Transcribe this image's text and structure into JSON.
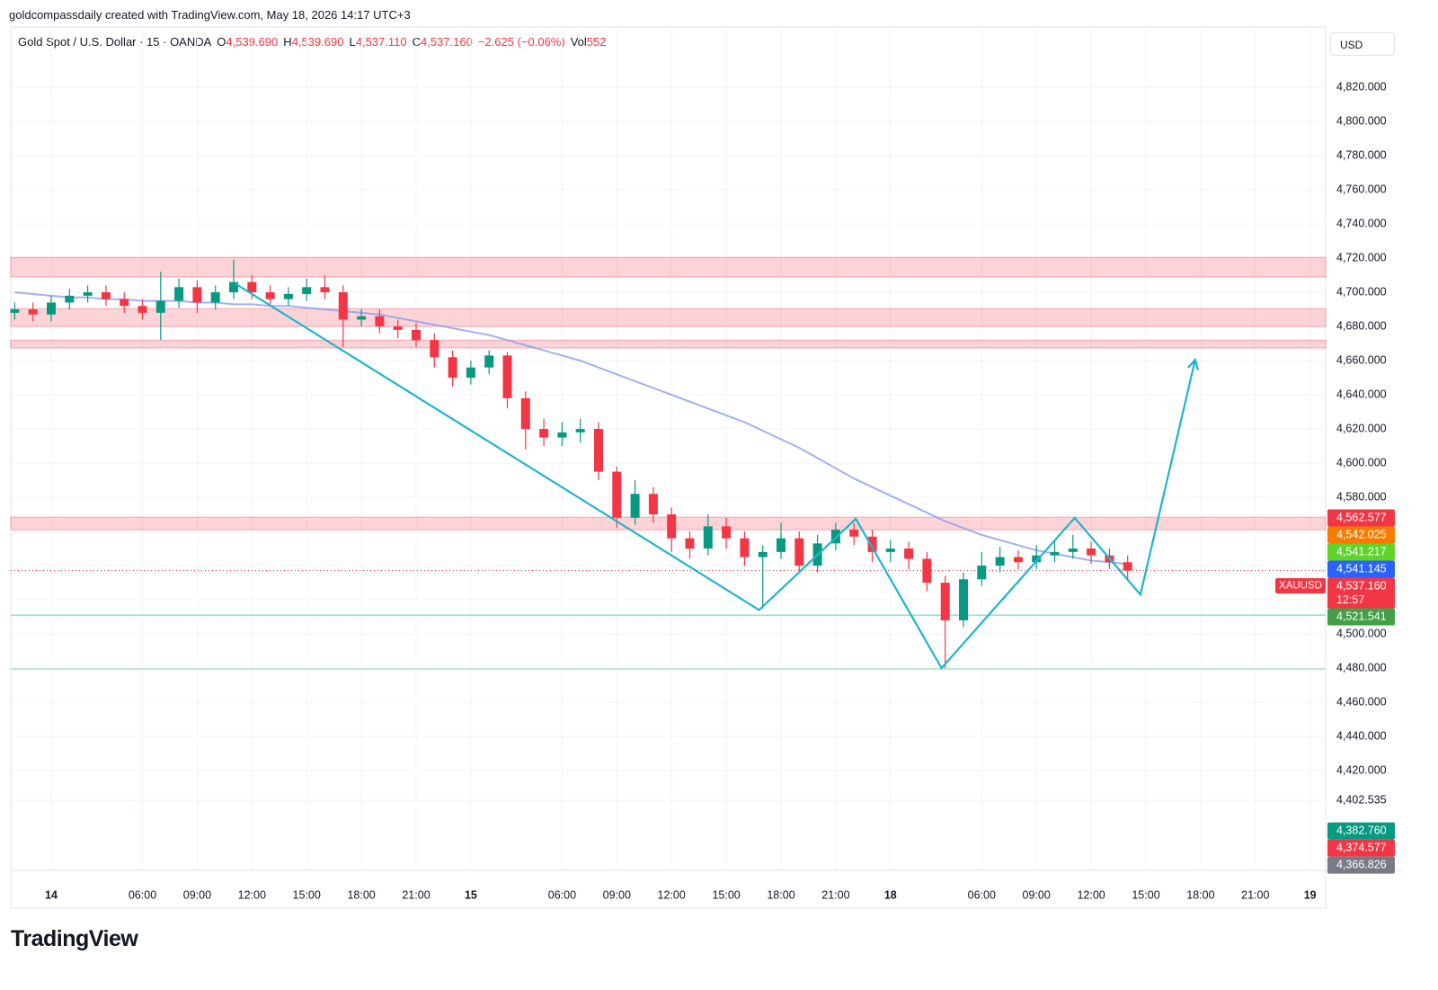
{
  "header": {
    "attribution": "goldcompassdaily created with TradingView.com, May 18, 2026 14:17 UTC+3",
    "symbol": "Gold Spot / U.S. Dollar · 15 · OANDA",
    "open_label": "O",
    "open": "4,539.690",
    "high_label": "H",
    "high": "4,539.690",
    "low_label": "L",
    "low": "4,537.110",
    "close_label": "C",
    "close": "4,537.160",
    "change": "−2.625 (−0.06%)",
    "volume_label": "Vol",
    "volume": "552",
    "currency": "USD"
  },
  "chart_data": {
    "type": "candlestick",
    "categories": [
      null,
      null,
      "14",
      null,
      null,
      null,
      null,
      "06:00",
      null,
      null,
      "09:00",
      null,
      null,
      "12:00",
      null,
      null,
      "15:00",
      null,
      null,
      "18:00",
      null,
      null,
      "21:00",
      null,
      null,
      "15",
      null,
      null,
      null,
      null,
      "06:00",
      null,
      null,
      "09:00",
      null,
      null,
      "12:00",
      null,
      null,
      "15:00",
      null,
      null,
      "18:00",
      null,
      null,
      "21:00",
      null,
      null,
      "18",
      null,
      null,
      null,
      null,
      "06:00",
      null,
      null,
      "09:00",
      null,
      null,
      "12:00",
      null,
      null,
      "15:00",
      null,
      null,
      "18:00",
      null,
      null,
      "21:00",
      null,
      null,
      "19"
    ],
    "open": [
      4688,
      4690,
      4687,
      4694,
      4698,
      4700,
      4696,
      4692,
      4688,
      4695,
      4703,
      4694,
      4700,
      4706,
      4700,
      4696,
      4699,
      4703,
      4700,
      4684,
      4686,
      4680,
      4678,
      4672,
      4662,
      4650,
      4656,
      4663,
      4638,
      4620,
      4615,
      4618,
      4620,
      4595,
      4568,
      4582,
      4570,
      4556,
      4550,
      4563,
      4556,
      4545,
      4548,
      4556,
      4540,
      4553,
      4561,
      4557,
      4548,
      4550,
      4544,
      4530,
      4508,
      4532,
      4540,
      4545,
      4542,
      4546,
      4548,
      4550,
      4546,
      4542,
      null,
      null,
      null,
      null,
      null,
      null,
      null,
      null,
      null,
      null
    ],
    "high": [
      4694,
      4694,
      4698,
      4702,
      4704,
      4704,
      4700,
      4696,
      4712,
      4708,
      4707,
      4704,
      4719,
      4710,
      4704,
      4703,
      4708,
      4710,
      4704,
      4690,
      4690,
      4684,
      4682,
      4676,
      4666,
      4660,
      4666,
      4665,
      4642,
      4626,
      4624,
      4626,
      4624,
      4598,
      4590,
      4586,
      4574,
      4560,
      4570,
      4568,
      4560,
      4552,
      4565,
      4560,
      4558,
      4565,
      4565,
      4561,
      4555,
      4554,
      4548,
      4534,
      4536,
      4548,
      4551,
      4549,
      4552,
      4555,
      4558,
      4554,
      4550,
      4546,
      null,
      null,
      null,
      null,
      null,
      null,
      null,
      null,
      null,
      null
    ],
    "low": [
      4684,
      4683,
      4683,
      4690,
      4694,
      4692,
      4688,
      4684,
      4672,
      4691,
      4688,
      4690,
      4696,
      4696,
      4692,
      4692,
      4695,
      4696,
      4668,
      4680,
      4676,
      4673,
      4668,
      4656,
      4645,
      4646,
      4652,
      4632,
      4608,
      4610,
      4610,
      4612,
      4590,
      4562,
      4564,
      4565,
      4548,
      4544,
      4546,
      4550,
      4540,
      4515,
      4544,
      4536,
      4536,
      4549,
      4552,
      4542,
      4542,
      4538,
      4525,
      4480,
      4504,
      4528,
      4536,
      4538,
      4538,
      4542,
      4544,
      4541,
      4538,
      4532,
      null,
      null,
      null,
      null,
      null,
      null,
      null,
      null,
      null,
      null
    ],
    "close": [
      4690,
      4687,
      4694,
      4698,
      4700,
      4696,
      4692,
      4688,
      4695,
      4703,
      4694,
      4700,
      4706,
      4700,
      4696,
      4699,
      4703,
      4700,
      4684,
      4686,
      4680,
      4678,
      4672,
      4662,
      4650,
      4656,
      4663,
      4638,
      4620,
      4615,
      4618,
      4620,
      4595,
      4568,
      4582,
      4570,
      4556,
      4550,
      4563,
      4556,
      4545,
      4548,
      4556,
      4540,
      4553,
      4561,
      4557,
      4548,
      4550,
      4544,
      4530,
      4508,
      4532,
      4540,
      4545,
      4542,
      4546,
      4548,
      4550,
      4546,
      4542,
      4537.16,
      null,
      null,
      null,
      null,
      null,
      null,
      null,
      null,
      null,
      null
    ],
    "up_color": "#089981",
    "down_color": "#f23645",
    "ma": {
      "color": "#8c9cf0",
      "values": [
        4700,
        4699,
        4698,
        4697,
        4697,
        4696,
        4696,
        4695,
        4695,
        4695,
        4694,
        4694,
        4693,
        4693,
        4692,
        4692,
        4691,
        4690,
        4689,
        4688,
        4687,
        4685,
        4683,
        4681,
        4679,
        4677,
        4675,
        4672,
        4669,
        4666,
        4663,
        4660,
        4656,
        4652,
        4648,
        4644,
        4640,
        4636,
        4632,
        4628,
        4624,
        4619,
        4614,
        4609,
        4603,
        4597,
        4591,
        4586,
        4581,
        4576,
        4571,
        4566,
        4562,
        4558,
        4555,
        4552,
        4549,
        4547,
        4545,
        4543,
        4542,
        4541,
        null,
        null,
        null,
        null,
        null,
        null,
        null,
        null,
        null,
        null
      ]
    },
    "zones": [
      {
        "from": 4709,
        "to": 4720.5
      },
      {
        "from": 4680,
        "to": 4690.5
      },
      {
        "from": 4667.4,
        "to": 4672
      },
      {
        "from": 4561,
        "to": 4568.4
      }
    ],
    "zone_color": "#f23645",
    "levels": [
      {
        "value": 4511,
        "color": "#7fd8c8"
      },
      {
        "value": 4479.5,
        "color": "#9fe0bf"
      }
    ],
    "last_price": {
      "value": 4537.16,
      "color": "#f23645"
    },
    "pattern": {
      "color": "#1fb5cc",
      "x": [
        12.1,
        40.8,
        46.1,
        50.8,
        58.1,
        61.7,
        64.7
      ],
      "y": [
        4705,
        4514,
        4567.4,
        4480,
        4568,
        4523,
        4660.5
      ]
    },
    "ylim": [
      4361.6,
      4855.3
    ],
    "yticks": [
      {
        "value": 4402.535,
        "label": "4,402.535"
      },
      {
        "value": 4420,
        "label": "4,420.000"
      },
      {
        "value": 4440,
        "label": "4,440.000"
      },
      {
        "value": 4460,
        "label": "4,460.000"
      },
      {
        "value": 4480,
        "label": "4,480.000"
      },
      {
        "value": 4500,
        "label": "4,500.000"
      },
      {
        "value": 4520,
        "label": "4,520.000"
      },
      {
        "value": 4540,
        "label": "4,540.000"
      },
      {
        "value": 4560,
        "label": "4,560.000"
      },
      {
        "value": 4580,
        "label": "4,580.000"
      },
      {
        "value": 4600,
        "label": "4,600.000"
      },
      {
        "value": 4620,
        "label": "4,620.000"
      },
      {
        "value": 4640,
        "label": "4,640.000"
      },
      {
        "value": 4660,
        "label": "4,660.000"
      },
      {
        "value": 4680,
        "label": "4,680.000"
      },
      {
        "value": 4700,
        "label": "4,700.000"
      },
      {
        "value": 4720,
        "label": "4,720.000"
      },
      {
        "value": 4740,
        "label": "4,740.000"
      },
      {
        "value": 4760,
        "label": "4,760.000"
      },
      {
        "value": 4780,
        "label": "4,780.000"
      },
      {
        "value": 4800,
        "label": "4,800.000"
      },
      {
        "value": 4820,
        "label": "4,820.000"
      }
    ],
    "grid": true,
    "price_labels": [
      {
        "value": 4562.577,
        "label": "4,562.577",
        "color": "#f23645"
      },
      {
        "value": 4542.025,
        "label": "4,542.025",
        "color": "#f57c00"
      },
      {
        "value": 4541.217,
        "label": "4,541.217",
        "color": "#5fd42a"
      },
      {
        "value": 4541.145,
        "label": "4,541.145",
        "color": "#2962ff"
      },
      {
        "value": 4537.16,
        "label": "4,537.160",
        "color": "#f23645",
        "tag": "XAUUSD",
        "countdown": "12:57"
      },
      {
        "value": 4521.541,
        "label": "4,521.541",
        "color": "#43a047"
      },
      {
        "value": 4382.76,
        "label": "4,382.760",
        "color": "#089981"
      },
      {
        "value": 4374.577,
        "label": "4,374.577",
        "color": "#f23645"
      },
      {
        "value": 4366.826,
        "label": "4,366.826",
        "color": "#787b86"
      }
    ]
  },
  "footer": {
    "brand": "TradingView"
  }
}
